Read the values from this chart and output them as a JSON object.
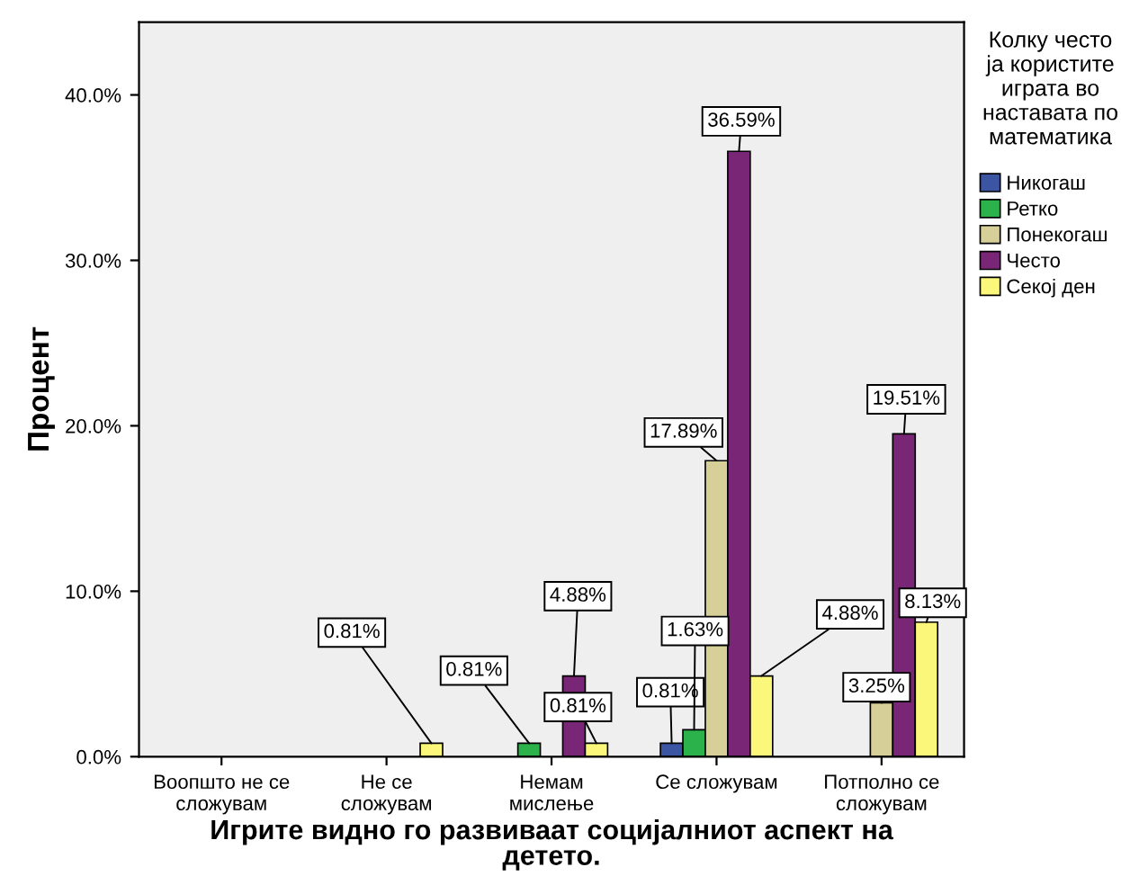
{
  "chart_data": {
    "type": "bar",
    "xlabel": "Игрите видно го развиваат социјалниот аспект на детето.",
    "ylabel": "Процент",
    "legend_title": "Колку често ја користите играта во наставата по математика",
    "legend": "right",
    "grid": false,
    "categories": [
      "Воопшто не се сложувам",
      "Не се сложувам",
      "Немам мислење",
      "Се сложувам",
      "Потполно се сложувам"
    ],
    "ylim": [
      0,
      44.4
    ],
    "yticks": [
      {
        "value": 0,
        "label": "0.0%"
      },
      {
        "value": 10,
        "label": "10.0%"
      },
      {
        "value": 20,
        "label": "20.0%"
      },
      {
        "value": 30,
        "label": "30.0%"
      },
      {
        "value": 40,
        "label": "40.0%"
      }
    ],
    "series": [
      {
        "name": "Никогаш",
        "color": "#3b55a3",
        "values": [
          null,
          null,
          null,
          0.81,
          null
        ],
        "value_labels": [
          null,
          null,
          null,
          "0.81%",
          null
        ]
      },
      {
        "name": "Ретко",
        "color": "#2bb24a",
        "values": [
          null,
          null,
          0.81,
          1.63,
          null
        ],
        "value_labels": [
          null,
          null,
          "0.81%",
          "1.63%",
          null
        ]
      },
      {
        "name": "Понекогаш",
        "color": "#d6cf98",
        "values": [
          null,
          null,
          null,
          17.89,
          3.25
        ],
        "value_labels": [
          null,
          null,
          null,
          "17.89%",
          "3.25%"
        ]
      },
      {
        "name": "Често",
        "color": "#7a2677",
        "values": [
          null,
          null,
          4.88,
          36.59,
          19.51
        ],
        "value_labels": [
          null,
          null,
          "4.88%",
          "36.59%",
          "19.51%"
        ]
      },
      {
        "name": "Секој ден",
        "color": "#fbf77a",
        "values": [
          null,
          0.81,
          0.81,
          4.88,
          8.13
        ],
        "value_labels": [
          null,
          "0.81%",
          "0.81%",
          "4.88%",
          "8.13%"
        ]
      }
    ]
  }
}
